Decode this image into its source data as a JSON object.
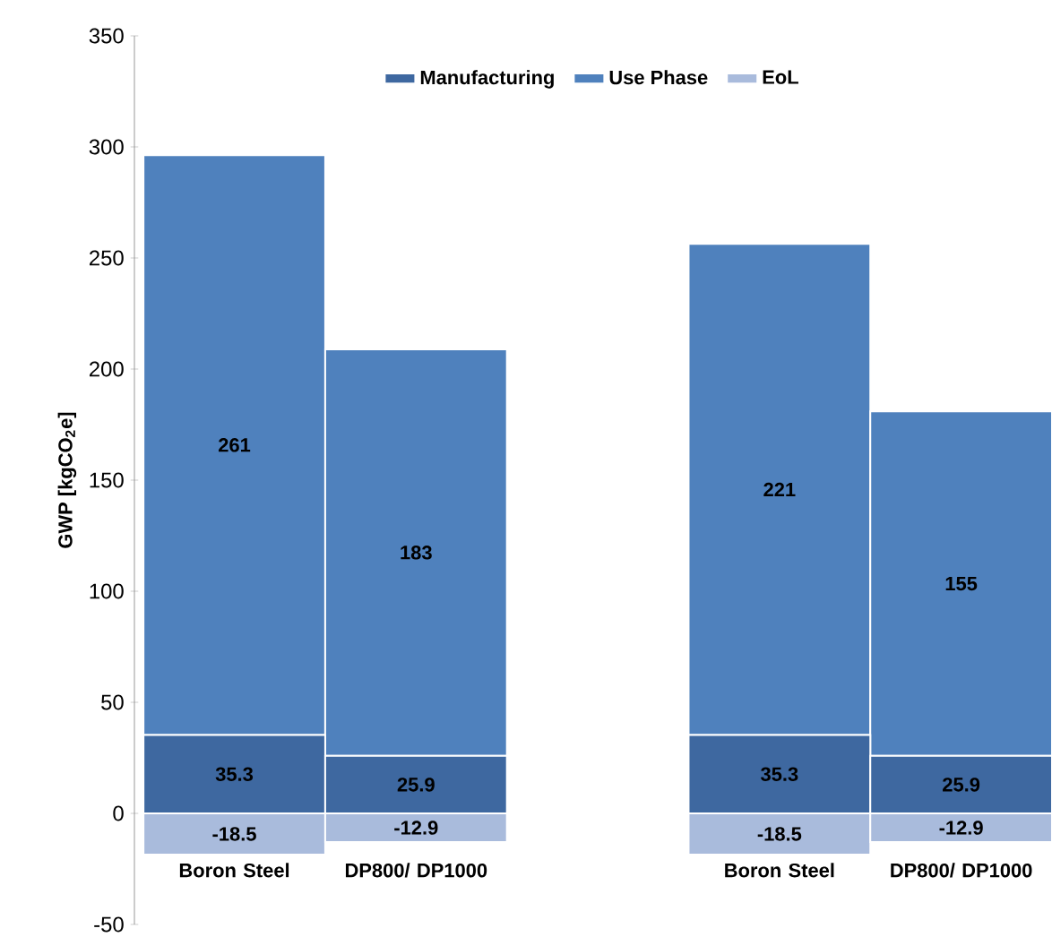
{
  "chart_data": {
    "type": "bar",
    "stacked": true,
    "ylabel": "GWP [kgCO$_{2}$e]",
    "categories": [
      "Boron Steel",
      "DP800/ DP1000",
      null,
      "Boron Steel",
      "DP800/ DP1000"
    ],
    "series": [
      {
        "name": "Manufacturing",
        "color": "#3e68a0",
        "values": [
          35.3,
          25.9,
          null,
          35.3,
          25.9
        ]
      },
      {
        "name": "Use Phase",
        "color": "#4f81bd",
        "values": [
          261,
          183,
          null,
          221,
          155
        ]
      },
      {
        "name": "EoL",
        "color": "#a9bbdc",
        "values": [
          -18.5,
          -12.9,
          null,
          -18.5,
          -12.9
        ]
      }
    ],
    "data_labels": true,
    "ylim": [
      -50,
      350
    ],
    "yticks": [
      -50,
      0,
      50,
      100,
      150,
      200,
      250,
      300,
      350
    ],
    "grid": false,
    "legend": "top"
  }
}
